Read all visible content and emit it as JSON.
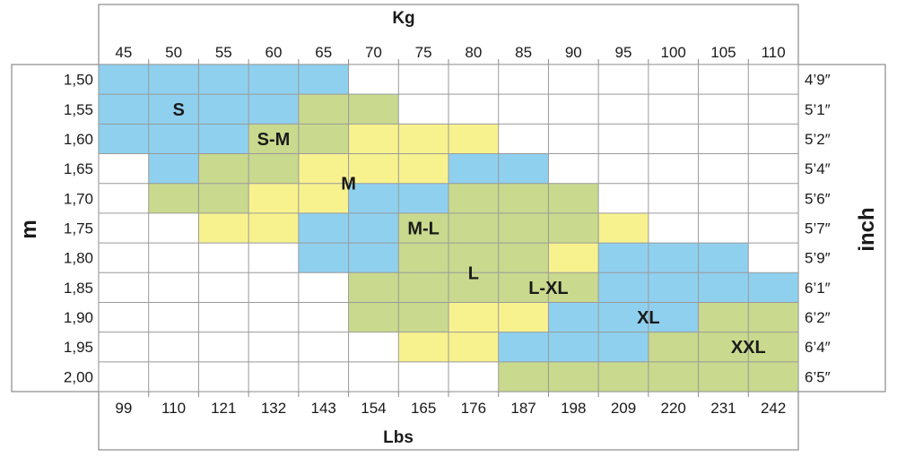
{
  "chart_data": {
    "type": "heatmap",
    "title": "",
    "top_axis": {
      "label": "Kg",
      "ticks": [
        "45",
        "50",
        "55",
        "60",
        "65",
        "70",
        "75",
        "80",
        "85",
        "90",
        "95",
        "100",
        "105",
        "110"
      ]
    },
    "bottom_axis": {
      "label": "Lbs",
      "ticks": [
        "99",
        "110",
        "121",
        "132",
        "143",
        "154",
        "165",
        "176",
        "187",
        "198",
        "209",
        "220",
        "231",
        "242"
      ]
    },
    "left_axis": {
      "label": "m",
      "ticks": [
        "1,50",
        "1,55",
        "1,60",
        "1,65",
        "1,70",
        "1,75",
        "1,80",
        "1,85",
        "1,90",
        "1,95",
        "2,00"
      ]
    },
    "right_axis": {
      "label": "inch",
      "ticks": [
        "4’9″",
        "5’1″",
        "5’2″",
        "5’4″",
        "5’6″",
        "5’7″",
        "5’9″",
        "6’1″",
        "6’2″",
        "6’4″",
        "6’5″"
      ]
    },
    "colors": {
      "B": "#8fd0ef",
      "G": "#c9d98d",
      "Y": "#f7f28e",
      "empty": "#ffffff",
      "grid": "#9a9a9a"
    },
    "grid": [
      "BBBBB.........",
      "BBBBGG........",
      "BBBGGYYY......",
      ".BGGYYYBB.....",
      ".GGYYBBGGG....",
      "..YYBBGGGGY...",
      "....BBGGGYBBB.",
      ".....GGGGGBBBB",
      ".....GGYYBBBGG",
      "......YYBBBGGG",
      "........GGGGGG"
    ],
    "zones": [
      {
        "label": "S",
        "col": 1.6,
        "row": 1.5
      },
      {
        "label": "S-M",
        "col": 3.5,
        "row": 2.5
      },
      {
        "label": "M",
        "col": 5.0,
        "row": 4.0
      },
      {
        "label": "M-L",
        "col": 6.5,
        "row": 5.5
      },
      {
        "label": "L",
        "col": 7.5,
        "row": 7.0
      },
      {
        "label": "L-XL",
        "col": 9.0,
        "row": 7.5
      },
      {
        "label": "XL",
        "col": 11.0,
        "row": 8.5
      },
      {
        "label": "XXL",
        "col": 13.0,
        "row": 9.5
      }
    ]
  }
}
